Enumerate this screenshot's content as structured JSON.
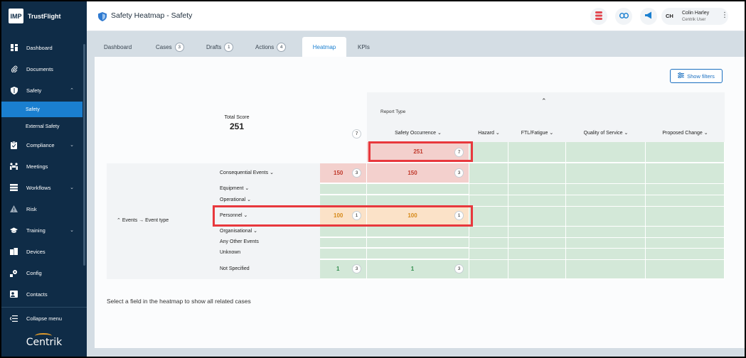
{
  "brand": {
    "logo": "IMP",
    "name": "TrustFlight"
  },
  "sidebar": {
    "items": [
      {
        "label": "Dashboard",
        "icon": "dashboard-icon"
      },
      {
        "label": "Documents",
        "icon": "paperclip-icon"
      },
      {
        "label": "Safety",
        "icon": "shield-icon"
      },
      {
        "label": "Compliance",
        "icon": "clipboard-icon"
      },
      {
        "label": "Meetings",
        "icon": "meetings-icon"
      },
      {
        "label": "Workflows",
        "icon": "workflow-icon"
      },
      {
        "label": "Risk",
        "icon": "warning-icon"
      },
      {
        "label": "Training",
        "icon": "graduation-cap-icon"
      },
      {
        "label": "Devices",
        "icon": "devices-icon"
      },
      {
        "label": "Config",
        "icon": "config-icon"
      },
      {
        "label": "Contacts",
        "icon": "contacts-icon"
      }
    ],
    "sub_items": [
      {
        "label": "Safety",
        "active": true
      },
      {
        "label": "External Safety",
        "active": false
      }
    ],
    "collapse_label": "Collapse menu",
    "footer_logo": "Centrik"
  },
  "topbar": {
    "title": "Safety Heatmap",
    "separator": " - ",
    "subtitle": "Safety",
    "user": {
      "initials": "CH",
      "name": "Colin Harley",
      "role": "Centrik User"
    }
  },
  "tabs": [
    {
      "label": "Dashboard",
      "count": ""
    },
    {
      "label": "Cases",
      "count": "3"
    },
    {
      "label": "Drafts",
      "count": "1"
    },
    {
      "label": "Actions",
      "count": "4"
    },
    {
      "label": "Heatmap",
      "count": "",
      "active": true
    },
    {
      "label": "KPIs",
      "count": ""
    }
  ],
  "heatmap": {
    "show_filters": "Show filters",
    "total_score_label": "Total Score",
    "total_score": "251",
    "total_count": "7",
    "report_type_label": "Report Type",
    "columns": [
      "Safety Occurrence",
      "Hazard",
      "FTL/Fatigue",
      "Quality of Service",
      "Proposed Change"
    ],
    "column_totals": {
      "score": "251",
      "count": "7"
    },
    "row_group_label": "Events → Event type",
    "rows": [
      {
        "label": "Consequential Events",
        "dropdown": true,
        "score": "150",
        "count": "3",
        "occ_score": "150",
        "occ_count": "3",
        "level": "red"
      },
      {
        "label": "Equipment",
        "dropdown": true
      },
      {
        "label": "Operational",
        "dropdown": true
      },
      {
        "label": "Personnel",
        "dropdown": true,
        "score": "100",
        "count": "1",
        "occ_score": "100",
        "occ_count": "1",
        "level": "orange"
      },
      {
        "label": "Organisational",
        "dropdown": true
      },
      {
        "label": "Any Other Events",
        "dropdown": false
      },
      {
        "label": "Unknown",
        "dropdown": false
      },
      {
        "label": "Not Specified",
        "dropdown": false,
        "score": "1",
        "count": "3",
        "occ_score": "1",
        "occ_count": "3",
        "level": "green"
      }
    ],
    "footer_hint": "Select a field in the heatmap to show all related cases"
  },
  "colors": {
    "sidebar": "#0f2c47",
    "accent": "#1a7fd0",
    "highlight": "#e8383d",
    "heat_green": "#d3e8d8",
    "heat_red": "#f3d0cd",
    "heat_orange": "#fbe2c8"
  }
}
